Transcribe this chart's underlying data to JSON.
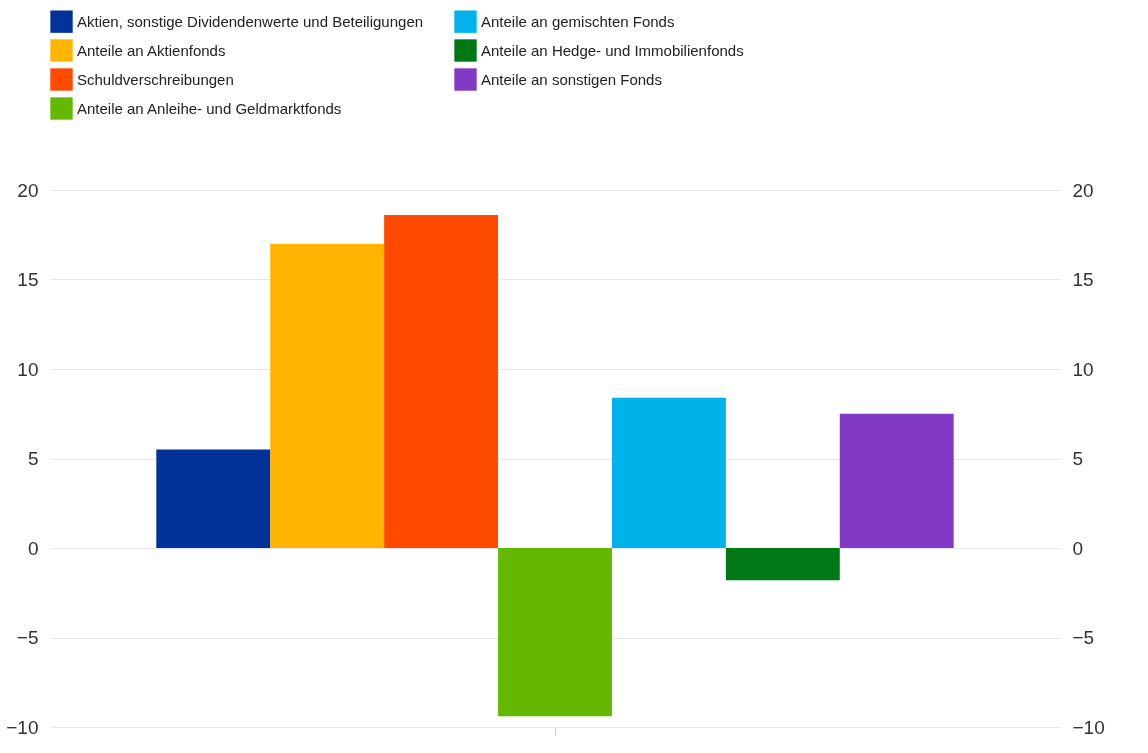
{
  "chart_data": {
    "type": "bar",
    "categories": [
      null
    ],
    "series": [
      {
        "name": "Aktien, sonstige Dividendenwerte und Beteiligungen",
        "color": "#003299",
        "values": [
          5.5
        ]
      },
      {
        "name": "Anteile an Aktienfonds",
        "color": "#ffb400",
        "values": [
          17.0
        ]
      },
      {
        "name": "Schuldverschreibungen",
        "color": "#ff4b00",
        "values": [
          18.6
        ]
      },
      {
        "name": "Anteile an Anleihe- und Geldmarktfonds",
        "color": "#65b800",
        "values": [
          -9.4
        ]
      },
      {
        "name": "Anteile an gemischten Fonds",
        "color": "#00b1ea",
        "values": [
          8.4
        ]
      },
      {
        "name": "Anteile an Hedge- und Immobilienfonds",
        "color": "#007816",
        "values": [
          -1.8
        ]
      },
      {
        "name": "Anteile an sonstigen Fonds",
        "color": "#8139c6",
        "values": [
          7.5
        ]
      }
    ],
    "ylim": [
      -10,
      20
    ],
    "yticks": [
      -10,
      -5,
      0,
      5,
      10,
      15,
      20
    ],
    "y2lim": [
      -10,
      20
    ],
    "y2ticks": [
      -10,
      -5,
      0,
      5,
      10,
      15,
      20
    ],
    "grid": "y",
    "legend": "top left"
  }
}
